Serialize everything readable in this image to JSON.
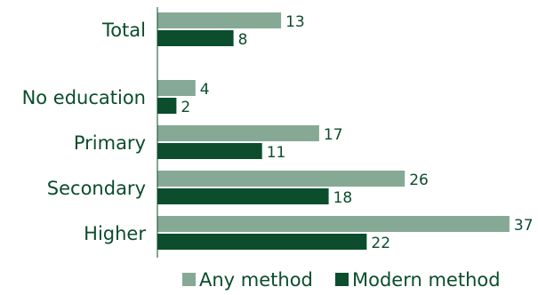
{
  "chart_data": {
    "type": "bar",
    "orientation": "horizontal",
    "title": "",
    "xlabel": "",
    "ylabel": "",
    "categories": [
      "Total",
      "No education",
      "Primary",
      "Secondary",
      "Higher"
    ],
    "series": [
      {
        "name": "Any method",
        "values": [
          13,
          4,
          17,
          26,
          37
        ],
        "color": "#86a996"
      },
      {
        "name": "Modern method",
        "values": [
          8,
          2,
          11,
          18,
          22
        ],
        "color": "#0b4d2c"
      }
    ],
    "xlim": [
      0,
      40
    ],
    "grid": false,
    "legend": "bottom",
    "text_color": "#0b4d2c"
  }
}
